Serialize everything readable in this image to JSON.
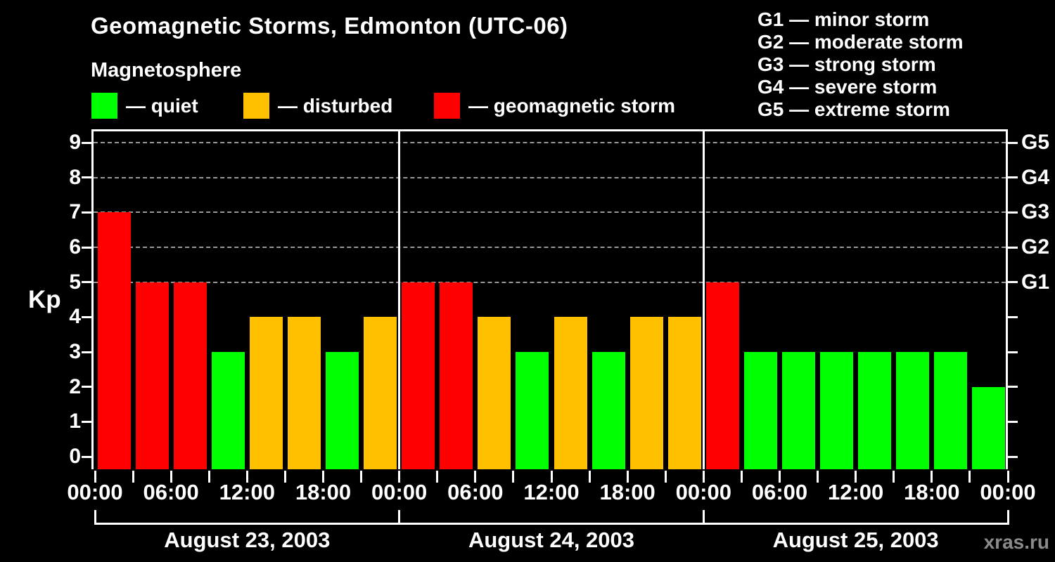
{
  "title": "Geomagnetic Storms, Edmonton (UTC-06)",
  "subtitle": "Magnetosphere",
  "legend": {
    "items": [
      {
        "name": "quiet",
        "label": "— quiet",
        "color": "#00FF00"
      },
      {
        "name": "disturbed",
        "label": "— disturbed",
        "color": "#FFC000"
      },
      {
        "name": "storm",
        "label": "— geomagnetic storm",
        "color": "#FF0000"
      }
    ]
  },
  "storm_scale": {
    "lines": [
      "G1 — minor storm",
      "G2 — moderate storm",
      "G3 — strong storm",
      "G4 — severe storm",
      "G5 — extreme storm"
    ]
  },
  "watermark": {
    "text": "xras.ru",
    "color": "#8a8a8a"
  },
  "chart_data": {
    "type": "bar",
    "title": "Geomagnetic Storms, Edmonton (UTC-06)",
    "xlabel": "",
    "ylabel": "Kp",
    "ylim": [
      0,
      9
    ],
    "y_ticks": [
      0,
      1,
      2,
      3,
      4,
      5,
      6,
      7,
      8,
      9
    ],
    "gridlines_at_kp": [
      5,
      6,
      7,
      8,
      9
    ],
    "grid_color": "#999999",
    "grid_style": "dashed",
    "legend_position": "top",
    "right_axis": [
      {
        "label": "G5",
        "kp": 9
      },
      {
        "label": "G4",
        "kp": 8
      },
      {
        "label": "G3",
        "kp": 7
      },
      {
        "label": "G2",
        "kp": 6
      },
      {
        "label": "G1",
        "kp": 5
      }
    ],
    "hours_per_bar": 3,
    "x_time_labels": [
      "00:00",
      "06:00",
      "12:00",
      "18:00",
      "00:00",
      "06:00",
      "12:00",
      "18:00",
      "00:00",
      "06:00",
      "12:00",
      "18:00",
      "00:00"
    ],
    "days": [
      {
        "date": "August 23, 2003",
        "bar_start_hours": [
          0,
          3,
          6,
          9,
          12,
          15,
          18,
          21
        ],
        "kp": [
          7,
          5,
          5,
          3,
          4,
          4,
          3,
          4
        ],
        "status": [
          "storm",
          "storm",
          "storm",
          "quiet",
          "disturbed",
          "disturbed",
          "quiet",
          "disturbed"
        ]
      },
      {
        "date": "August 24, 2003",
        "bar_start_hours": [
          0,
          3,
          6,
          9,
          12,
          15,
          18,
          21
        ],
        "kp": [
          5,
          5,
          4,
          3,
          4,
          3,
          4,
          4
        ],
        "status": [
          "storm",
          "storm",
          "disturbed",
          "quiet",
          "disturbed",
          "quiet",
          "disturbed",
          "disturbed"
        ]
      },
      {
        "date": "August 25, 2003",
        "bar_start_hours": [
          0,
          3,
          6,
          9,
          12,
          15,
          18,
          21
        ],
        "kp": [
          5,
          3,
          3,
          3,
          3,
          3,
          3,
          2
        ],
        "status": [
          "storm",
          "quiet",
          "quiet",
          "quiet",
          "quiet",
          "quiet",
          "quiet",
          "quiet"
        ]
      }
    ],
    "status_colors": {
      "quiet": "#00FF00",
      "disturbed": "#FFC000",
      "storm": "#FF0000"
    },
    "color_rule": "kp<=3: quiet (green), kp==4: disturbed (amber), kp>=5: storm (red)"
  }
}
